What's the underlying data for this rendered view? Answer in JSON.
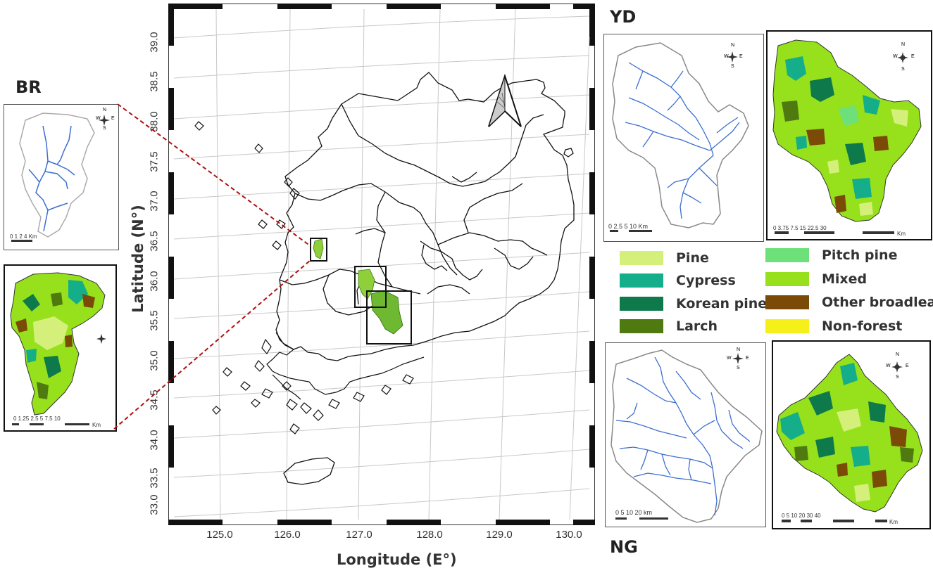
{
  "map": {
    "xlabel": "Longitude (E°)",
    "ylabel": "Latitude (N°)",
    "lon_ticks": [
      "125.0",
      "126.0",
      "127.0",
      "128.0",
      "129.0",
      "130.0"
    ],
    "lat_ticks": [
      "39.0",
      "38.5",
      "38.0",
      "37.5",
      "37.0",
      "36.5",
      "36.0",
      "35.5",
      "35.0",
      "34.5",
      "34.0",
      "33.5",
      "33.0"
    ]
  },
  "sites": {
    "br": "BR",
    "yd": "YD",
    "ng": "NG"
  },
  "compass": {
    "n": "N",
    "s": "S",
    "e": "E",
    "w": "W"
  },
  "scalebars": {
    "br_top": "0  1  2     4 Km",
    "br_bottom": "0  1.25 2.5      5      7.5      10",
    "br_bottom_unit": "Km",
    "yd_left": "0 2.5  5       10 Km",
    "yd_right": "0    3.75   7.5         15          22.5        30",
    "yd_right_unit": "Km",
    "ng_left": "0    5   10          20 km",
    "ng_right": "0    5   10       20        30       40",
    "ng_right_unit": "Km"
  },
  "legend": [
    {
      "label": "Pine",
      "color": "#d4f07a"
    },
    {
      "label": "Pitch pine",
      "color": "#6ee07a"
    },
    {
      "label": "Cypress",
      "color": "#14ae8a"
    },
    {
      "label": "Mixed",
      "color": "#96e01c"
    },
    {
      "label": "Korean pine",
      "color": "#0e7a4c"
    },
    {
      "label": "Other broadleaf",
      "color": "#7a4a06"
    },
    {
      "label": "Larch",
      "color": "#4e7a10"
    },
    {
      "label": "Non-forest",
      "color": "#f6f01a"
    }
  ]
}
